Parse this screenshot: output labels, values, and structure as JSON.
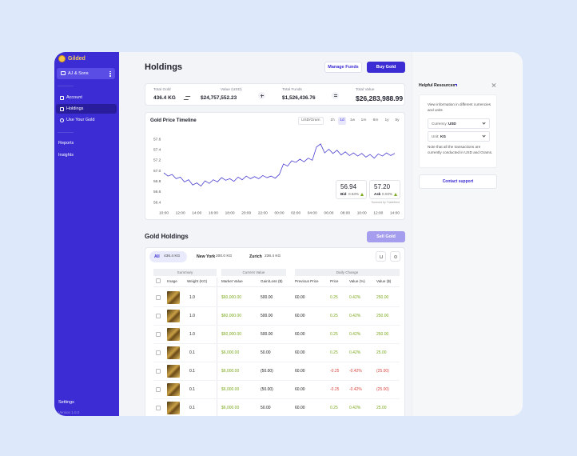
{
  "sidebar": {
    "brand": "Gilded",
    "workspace": "AJ & Sons",
    "nav": [
      "Account",
      "Holdings",
      "Use Your Gold"
    ],
    "nav_secondary": [
      "Reports",
      "Insights"
    ],
    "settings": "Settings",
    "version": "Version 1.0.0"
  },
  "header": {
    "title": "Holdings",
    "buttons": [
      "Manage Funds",
      "Buy Gold"
    ]
  },
  "summary": [
    {
      "label": "Total Gold",
      "value": "436.4 KG"
    },
    {
      "label": "Value (USD)",
      "value": "$24,757,552.23"
    },
    {
      "label": "Total Funds",
      "value": "$1,526,436.76"
    },
    {
      "label": "Total Value",
      "value": "$26,283,988.99"
    }
  ],
  "chart_data": {
    "type": "line",
    "title": "Gold Price Timeline",
    "unit_selector": "USD/Gram",
    "ranges": [
      "1h",
      "1d",
      "1w",
      "1m",
      "6m",
      "1y",
      "5y"
    ],
    "active_range": "1d",
    "color": "#4a3fd0",
    "grid": false,
    "x": [
      0,
      0.5,
      1,
      1.5,
      2,
      2.5,
      3,
      3.5,
      4,
      4.5,
      5,
      5.5,
      6,
      6.5,
      7,
      7.5,
      8,
      8.5,
      9,
      9.5,
      10,
      10.5,
      11,
      11.5,
      12,
      12.5,
      13,
      13.5,
      14,
      14.5,
      15,
      15.5,
      16,
      16.5,
      17,
      17.5,
      18,
      18.5,
      19,
      19.5,
      20,
      20.5,
      21,
      21.5,
      22,
      22.5,
      23,
      23.5,
      24,
      24.5,
      25,
      25.5,
      26,
      26.5,
      27,
      27.5,
      28
    ],
    "values": [
      56.96,
      56.9,
      56.93,
      56.85,
      56.88,
      56.79,
      56.83,
      56.73,
      56.77,
      56.71,
      56.81,
      56.76,
      56.83,
      56.79,
      56.87,
      56.82,
      56.85,
      56.8,
      56.88,
      56.83,
      56.9,
      56.85,
      56.89,
      56.85,
      56.91,
      56.87,
      56.9,
      56.86,
      56.93,
      57.13,
      57.09,
      57.19,
      57.16,
      57.22,
      57.17,
      57.24,
      57.2,
      57.45,
      57.51,
      57.34,
      57.41,
      57.33,
      57.39,
      57.3,
      57.36,
      57.29,
      57.34,
      57.28,
      57.33,
      57.26,
      57.31,
      57.24,
      57.32,
      57.28,
      57.34,
      57.29,
      57.33
    ],
    "xlim": [
      0,
      28
    ],
    "ylim": [
      56.4,
      57.6
    ],
    "yticks": [
      57.6,
      57.4,
      57.2,
      {
        "value": 57,
        "label": "57.0"
      },
      56.8,
      56.6,
      56.4
    ],
    "xticks": [
      {
        "value": 0,
        "label": "10:00"
      },
      {
        "value": 2,
        "label": "12:00"
      },
      {
        "value": 4,
        "label": "14:00"
      },
      {
        "value": 6,
        "label": "16:00"
      },
      {
        "value": 8,
        "label": "18:00"
      },
      {
        "value": 10,
        "label": "20:00"
      },
      {
        "value": 12,
        "label": "22:00"
      },
      {
        "value": 14,
        "label": "00:00"
      },
      {
        "value": 16,
        "label": "02:00"
      },
      {
        "value": 18,
        "label": "04:00"
      },
      {
        "value": 20,
        "label": "06:00"
      },
      {
        "value": 22,
        "label": "08:00"
      },
      {
        "value": 24,
        "label": "10:00"
      },
      {
        "value": 26,
        "label": "12:00"
      },
      {
        "value": 28,
        "label": "14:00"
      }
    ],
    "quotes": [
      {
        "price": "56.94",
        "label": "Bid",
        "change": "0.63%"
      },
      {
        "price": "57.20",
        "label": "Ask",
        "change": "0.03%"
      }
    ],
    "source": "Sourced by Tradefeed"
  },
  "holdings": {
    "title": "Gold Holdings",
    "action": "Sell Gold",
    "tabs": [
      {
        "name": "All",
        "amount": "436.4 KG"
      },
      {
        "name": "New York",
        "amount": "200.0 KG"
      },
      {
        "name": "Zurich",
        "amount": "236.4 KG"
      }
    ],
    "groups": [
      "Summary",
      "Current Value",
      "Daily Change"
    ],
    "columns": [
      "Image",
      "Weight (KG)",
      "Market Value",
      "Gain/Loss ($)",
      "Previous Price",
      "Price",
      "Value (%)",
      "Value ($)"
    ],
    "rows": [
      [
        "1.0",
        "$60,000.00",
        "500.00",
        "60.00",
        "0.25",
        "0.42%",
        "250.00"
      ],
      [
        "1.0",
        "$60,000.00",
        "500.00",
        "60.00",
        "0.25",
        "0.42%",
        "250.00"
      ],
      [
        "1.0",
        "$60,000.00",
        "500.00",
        "60.00",
        "0.25",
        "0.42%",
        "250.00"
      ],
      [
        "0.1",
        "$6,000.00",
        "50.00",
        "60.00",
        "0.25",
        "0.42%",
        "25.00"
      ],
      [
        "0.1",
        "$6,000.00",
        "(50.00)",
        "60.00",
        "-0.25",
        "-0.42%",
        "(25.00)"
      ],
      [
        "0.1",
        "$6,000.00",
        "(50.00)",
        "60.00",
        "-0.25",
        "-0.42%",
        "(25.00)"
      ],
      [
        "0.1",
        "$6,000.00",
        "50.00",
        "60.00",
        "0.25",
        "0.42%",
        "25.00"
      ]
    ]
  },
  "resources": {
    "title": "Helpful Resources",
    "intro": "View information in different currencies and units",
    "currency_label": "Currency:",
    "currency": "USD",
    "unit_label": "Unit:",
    "unit": "KG",
    "note": "Note that all the transactions are currently conducted in USD and Grams.",
    "support": "Contact support"
  }
}
